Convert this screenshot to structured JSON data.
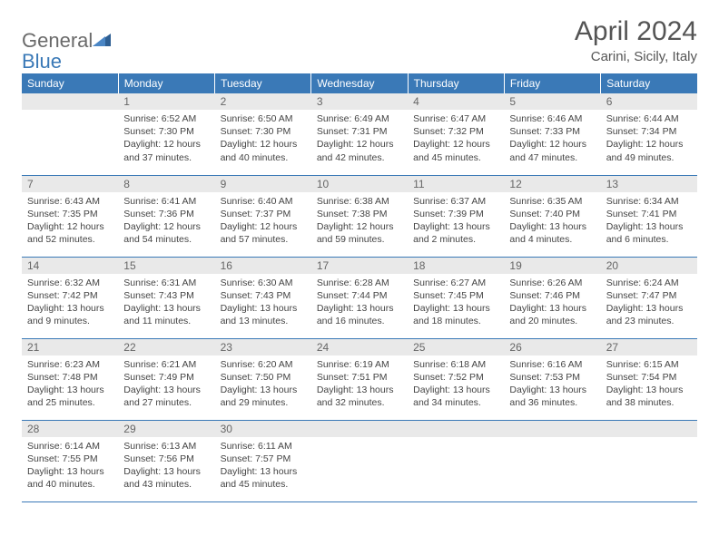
{
  "logo": {
    "text1": "General",
    "text2": "Blue"
  },
  "title": "April 2024",
  "location": "Carini, Sicily, Italy",
  "weekdays": [
    "Sunday",
    "Monday",
    "Tuesday",
    "Wednesday",
    "Thursday",
    "Friday",
    "Saturday"
  ],
  "colors": {
    "header_bg": "#3a79b7",
    "header_text": "#ffffff",
    "daynum_bg": "#e9e9e9",
    "daynum_text": "#666666",
    "body_text": "#444444",
    "rule": "#3a79b7",
    "page_bg": "#ffffff",
    "logo_gray": "#6a6a6a",
    "logo_blue": "#3a79b7",
    "title_color": "#555555"
  },
  "typography": {
    "month_title_pt": 30,
    "location_pt": 15,
    "weekday_pt": 12,
    "daynum_pt": 12,
    "body_pt": 10.5,
    "logo_pt": 22
  },
  "weeks": [
    [
      null,
      {
        "n": "1",
        "sr": "6:52 AM",
        "ss": "7:30 PM",
        "dl": "12 hours and 37 minutes."
      },
      {
        "n": "2",
        "sr": "6:50 AM",
        "ss": "7:30 PM",
        "dl": "12 hours and 40 minutes."
      },
      {
        "n": "3",
        "sr": "6:49 AM",
        "ss": "7:31 PM",
        "dl": "12 hours and 42 minutes."
      },
      {
        "n": "4",
        "sr": "6:47 AM",
        "ss": "7:32 PM",
        "dl": "12 hours and 45 minutes."
      },
      {
        "n": "5",
        "sr": "6:46 AM",
        "ss": "7:33 PM",
        "dl": "12 hours and 47 minutes."
      },
      {
        "n": "6",
        "sr": "6:44 AM",
        "ss": "7:34 PM",
        "dl": "12 hours and 49 minutes."
      }
    ],
    [
      {
        "n": "7",
        "sr": "6:43 AM",
        "ss": "7:35 PM",
        "dl": "12 hours and 52 minutes."
      },
      {
        "n": "8",
        "sr": "6:41 AM",
        "ss": "7:36 PM",
        "dl": "12 hours and 54 minutes."
      },
      {
        "n": "9",
        "sr": "6:40 AM",
        "ss": "7:37 PM",
        "dl": "12 hours and 57 minutes."
      },
      {
        "n": "10",
        "sr": "6:38 AM",
        "ss": "7:38 PM",
        "dl": "12 hours and 59 minutes."
      },
      {
        "n": "11",
        "sr": "6:37 AM",
        "ss": "7:39 PM",
        "dl": "13 hours and 2 minutes."
      },
      {
        "n": "12",
        "sr": "6:35 AM",
        "ss": "7:40 PM",
        "dl": "13 hours and 4 minutes."
      },
      {
        "n": "13",
        "sr": "6:34 AM",
        "ss": "7:41 PM",
        "dl": "13 hours and 6 minutes."
      }
    ],
    [
      {
        "n": "14",
        "sr": "6:32 AM",
        "ss": "7:42 PM",
        "dl": "13 hours and 9 minutes."
      },
      {
        "n": "15",
        "sr": "6:31 AM",
        "ss": "7:43 PM",
        "dl": "13 hours and 11 minutes."
      },
      {
        "n": "16",
        "sr": "6:30 AM",
        "ss": "7:43 PM",
        "dl": "13 hours and 13 minutes."
      },
      {
        "n": "17",
        "sr": "6:28 AM",
        "ss": "7:44 PM",
        "dl": "13 hours and 16 minutes."
      },
      {
        "n": "18",
        "sr": "6:27 AM",
        "ss": "7:45 PM",
        "dl": "13 hours and 18 minutes."
      },
      {
        "n": "19",
        "sr": "6:26 AM",
        "ss": "7:46 PM",
        "dl": "13 hours and 20 minutes."
      },
      {
        "n": "20",
        "sr": "6:24 AM",
        "ss": "7:47 PM",
        "dl": "13 hours and 23 minutes."
      }
    ],
    [
      {
        "n": "21",
        "sr": "6:23 AM",
        "ss": "7:48 PM",
        "dl": "13 hours and 25 minutes."
      },
      {
        "n": "22",
        "sr": "6:21 AM",
        "ss": "7:49 PM",
        "dl": "13 hours and 27 minutes."
      },
      {
        "n": "23",
        "sr": "6:20 AM",
        "ss": "7:50 PM",
        "dl": "13 hours and 29 minutes."
      },
      {
        "n": "24",
        "sr": "6:19 AM",
        "ss": "7:51 PM",
        "dl": "13 hours and 32 minutes."
      },
      {
        "n": "25",
        "sr": "6:18 AM",
        "ss": "7:52 PM",
        "dl": "13 hours and 34 minutes."
      },
      {
        "n": "26",
        "sr": "6:16 AM",
        "ss": "7:53 PM",
        "dl": "13 hours and 36 minutes."
      },
      {
        "n": "27",
        "sr": "6:15 AM",
        "ss": "7:54 PM",
        "dl": "13 hours and 38 minutes."
      }
    ],
    [
      {
        "n": "28",
        "sr": "6:14 AM",
        "ss": "7:55 PM",
        "dl": "13 hours and 40 minutes."
      },
      {
        "n": "29",
        "sr": "6:13 AM",
        "ss": "7:56 PM",
        "dl": "13 hours and 43 minutes."
      },
      {
        "n": "30",
        "sr": "6:11 AM",
        "ss": "7:57 PM",
        "dl": "13 hours and 45 minutes."
      },
      null,
      null,
      null,
      null
    ]
  ],
  "labels": {
    "sunrise": "Sunrise:",
    "sunset": "Sunset:",
    "daylight": "Daylight:"
  }
}
